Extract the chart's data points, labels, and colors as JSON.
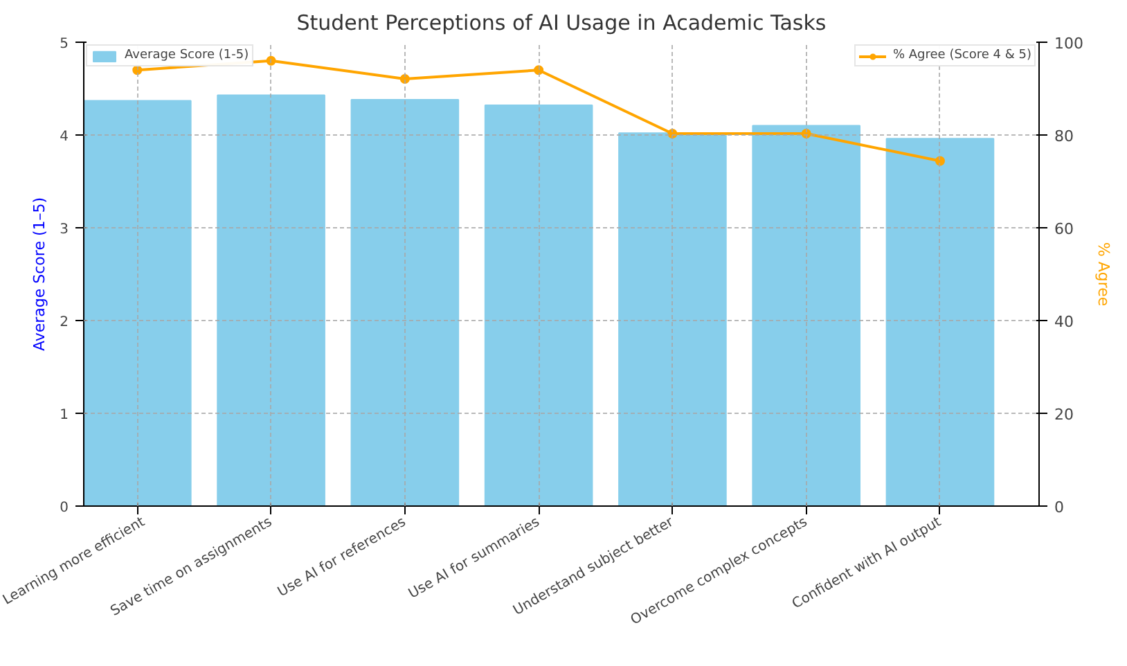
{
  "chart_data": {
    "type": "bar",
    "title": "Student Perceptions of AI Usage in Academic Tasks",
    "ylabel": "Average Score (1–5)",
    "y2label": "% Agree",
    "categories": [
      "Learning more efficient",
      "Save time on assignments",
      "Use AI for references",
      "Use AI for summaries",
      "Understand subject better",
      "Overcome complex concepts",
      "Confident with AI output"
    ],
    "series": [
      {
        "name": "Average Score (1-5)",
        "color": "#87ceeb",
        "values": [
          4.37,
          4.43,
          4.38,
          4.32,
          4.02,
          4.1,
          3.96
        ]
      },
      {
        "name": "% Agree (Score 4 & 5)",
        "type": "line",
        "axis": "y2",
        "color": "#ffa500",
        "marker": "circle",
        "values": [
          94.0,
          96.0,
          92.1,
          94.0,
          80.3,
          80.3,
          74.4
        ]
      }
    ],
    "ylim": [
      0,
      5
    ],
    "yticks": [
      0,
      1,
      2,
      3,
      4,
      5
    ],
    "y2lim": [
      0,
      100
    ],
    "y2ticks": [
      0,
      20,
      40,
      60,
      80,
      100
    ],
    "grid": true,
    "legend": "top left"
  }
}
